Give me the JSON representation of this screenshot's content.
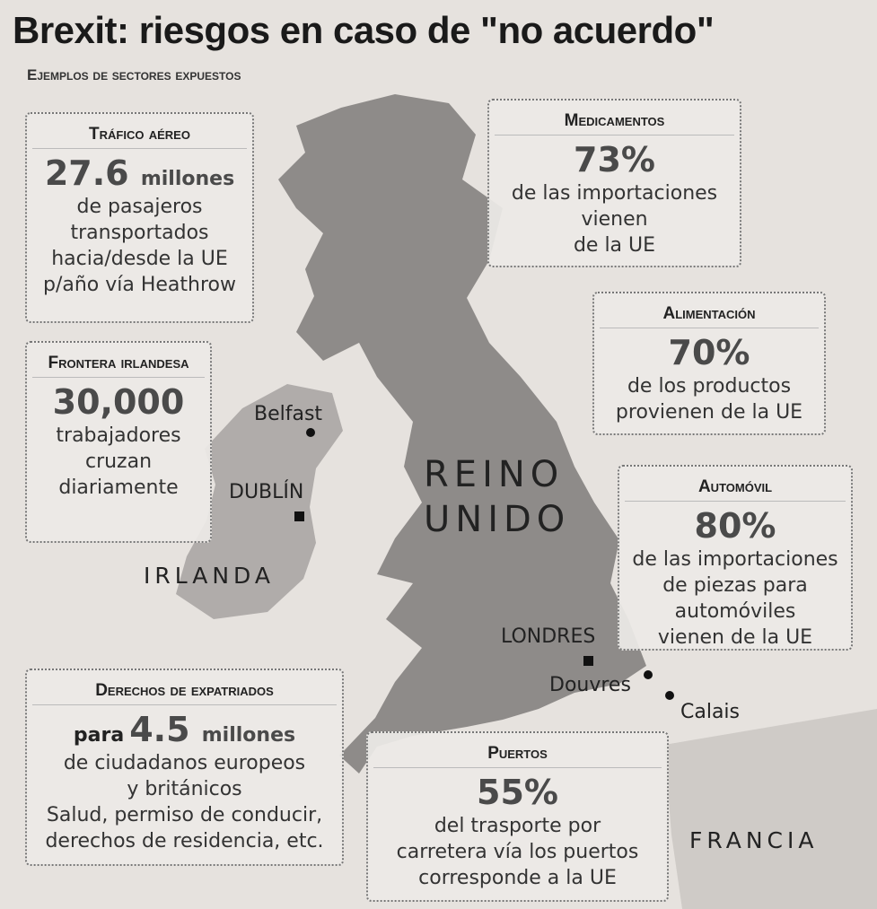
{
  "header": {
    "title": "Brexit: riesgos en caso de \"no acuerdo\"",
    "subtitle": "Ejemplos de sectores expuestos"
  },
  "boxes": [
    {
      "heading": "Tráfico aéreo",
      "figure": "27.6",
      "unit": "millones",
      "lines": [
        "de pasajeros",
        "transportados",
        "hacia/desde la UE",
        "p/año vía Heathrow"
      ]
    },
    {
      "heading": "Frontera irlandesa",
      "figure": "30,000",
      "lines": [
        "trabajadores",
        "cruzan",
        "diariamente"
      ]
    },
    {
      "heading": "Medicamentos",
      "figure": "73%",
      "lines": [
        "de las importaciones",
        "vienen",
        "de la UE"
      ]
    },
    {
      "heading": "Alimentación",
      "figure": "70%",
      "lines": [
        "de los productos",
        "provienen de la UE"
      ]
    },
    {
      "heading": "Automóvil",
      "figure": "80%",
      "lines": [
        "de las importaciones",
        "de piezas para",
        "automóviles",
        "vienen de la UE"
      ]
    },
    {
      "heading": "Derechos de expatriados",
      "prefix": "para",
      "figure": "4.5",
      "unit": "millones",
      "lines": [
        "de ciudadanos europeos",
        "y británicos",
        "Salud, permiso de conducir,",
        "derechos de residencia, etc."
      ]
    },
    {
      "heading": "Puertos",
      "figure": "55%",
      "lines": [
        "del trasporte por",
        "carretera vía los puertos",
        "corresponde a la UE"
      ]
    }
  ],
  "map_labels": {
    "belfast": "Belfast",
    "dublin": "DUBLÍN",
    "irlanda": "IRLANDA",
    "reino_unido": [
      "REINO",
      "UNIDO"
    ],
    "londres": "LONDRES",
    "douvres": "Douvres",
    "calais": "Calais",
    "francia": "FRANCIA"
  }
}
